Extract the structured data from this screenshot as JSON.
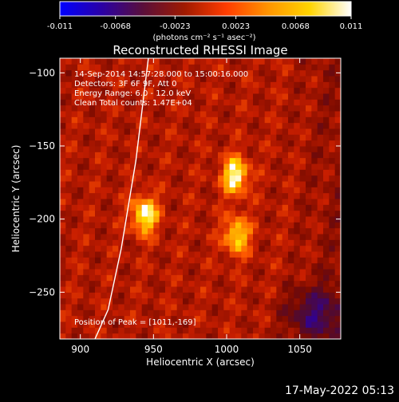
{
  "colorbar": {
    "ticks": [
      "-0.011",
      "-0.0068",
      "-0.0023",
      "0.0023",
      "0.0068",
      "0.011"
    ],
    "unit_label": "(photons cm⁻² s⁻¹ asec⁻²)",
    "range": [
      -0.011,
      0.011
    ],
    "colormap": [
      "#0000ff",
      "#2a00a6",
      "#5a0f3a",
      "#a01a00",
      "#ff3c00",
      "#ff9400",
      "#ffd400",
      "#ffffff"
    ]
  },
  "chart_data": {
    "type": "heatmap",
    "title": "Reconstructed RHESSI Image",
    "xlabel": "Heliocentric X (arcsec)",
    "ylabel": "Heliocentric Y (arcsec)",
    "xlim": [
      886,
      1078
    ],
    "ylim": [
      -282,
      -90
    ],
    "x_ticks": [
      900,
      950,
      1000,
      1050
    ],
    "y_ticks": [
      -100,
      -150,
      -200,
      -250
    ],
    "x_tick_labels": [
      "900",
      "950",
      "1000",
      "1050"
    ],
    "y_tick_labels": [
      "−100",
      "−150",
      "−200",
      "−250"
    ],
    "info_lines": [
      "14-Sep-2014 14:57:28.000 to 15:00:16.000",
      "Detectors: 3F 6F 9F, Att 0",
      "Energy Range: 6.0 - 12.0 keV",
      "Clean    Total counts: 1.47E+04"
    ],
    "peak_label": "Position of Peak = [1011,-169]",
    "sources": [
      {
        "x": 944,
        "y": -197,
        "peak": 1.0
      },
      {
        "x": 1006,
        "y": -170,
        "peak": 1.0
      },
      {
        "x": 1007,
        "y": -211,
        "peak": 0.85
      }
    ],
    "limb": [
      [
        946.5,
        -90
      ],
      [
        938,
        -160
      ],
      [
        928,
        -220
      ],
      [
        919,
        -262
      ],
      [
        910,
        -282
      ]
    ]
  },
  "footer": {
    "date": "17-May-2022 05:13"
  }
}
